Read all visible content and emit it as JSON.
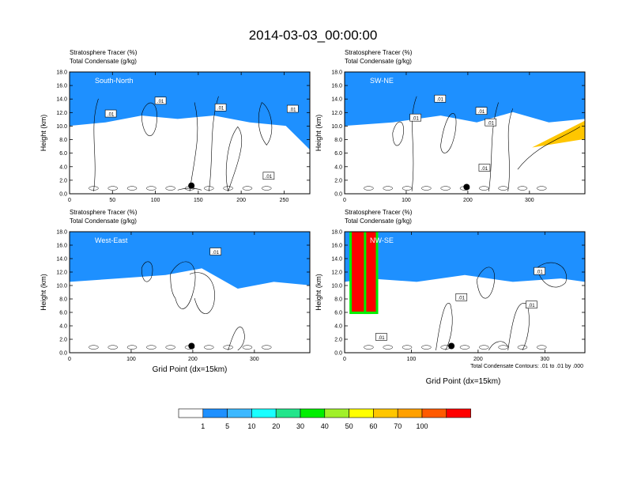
{
  "title": "2014-03-03_00:00:00",
  "colors": {
    "levels": [
      "#ffffff",
      "#1e90ff",
      "#3cb8ff",
      "#19ffff",
      "#22e58b",
      "#00ee00",
      "#a0f02a",
      "#ffff00",
      "#ffc600",
      "#ffa000",
      "#ff5a00",
      "#ff0000"
    ],
    "contour": "#000000"
  },
  "chart_data": [
    {
      "type": "heatmap",
      "panel_label": "South-North",
      "header_line1": "Stratosphere Tracer   (%)",
      "header_line2": "Total Condensate   (g/kg)",
      "ylabel": "Height (km)",
      "xlabel": "",
      "xlim": [
        0,
        280
      ],
      "ylim": [
        0,
        18
      ],
      "xticks": [
        "0",
        "50",
        "100",
        "150",
        "200",
        "250"
      ],
      "yticks": [
        "0.0",
        "2.0",
        "4.0",
        "6.0",
        "8.0",
        "10.0",
        "12.0",
        "14.0",
        "16.0",
        "18.0"
      ],
      "contour_labels": [
        ".01",
        ".01",
        ".01",
        ".01",
        ".01"
      ],
      "contour_label_pos": [
        [
          48,
          11.8
        ],
        [
          106,
          13.7
        ],
        [
          176,
          12.7
        ],
        [
          260,
          12.5
        ],
        [
          232,
          2.6
        ]
      ],
      "marker": [
        142,
        1.2
      ]
    },
    {
      "type": "heatmap",
      "panel_label": "SW-NE",
      "header_line1": "Stratosphere Tracer   (%)",
      "header_line2": "Total Condensate   (g/kg)",
      "ylabel": "Height (km)",
      "xlabel": "",
      "xlim": [
        0,
        390
      ],
      "ylim": [
        0,
        18
      ],
      "xticks": [
        "0",
        "100",
        "200",
        "300"
      ],
      "yticks": [
        "0.0",
        "2.0",
        "4.0",
        "6.0",
        "8.0",
        "10.0",
        "12.0",
        "14.0",
        "16.0",
        "18.0"
      ],
      "contour_labels": [
        ".01",
        ".01",
        ".01",
        ".01",
        ".01"
      ],
      "contour_label_pos": [
        [
          115,
          11.2
        ],
        [
          155,
          14.0
        ],
        [
          222,
          12.2
        ],
        [
          237,
          10.5
        ],
        [
          227,
          3.8
        ]
      ],
      "marker": [
        198,
        1.0
      ]
    },
    {
      "type": "heatmap",
      "panel_label": "West-East",
      "header_line1": "Stratosphere Tracer   (%)",
      "header_line2": "Total Condensate   (g/kg)",
      "ylabel": "Height (km)",
      "xlabel": "Grid Point (dx=15km)",
      "xlim": [
        0,
        390
      ],
      "ylim": [
        0,
        18
      ],
      "xticks": [
        "0",
        "100",
        "200",
        "300"
      ],
      "yticks": [
        "0.0",
        "2.0",
        "4.0",
        "6.0",
        "8.0",
        "10.0",
        "12.0",
        "14.0",
        "16.0",
        "18.0"
      ],
      "contour_labels": [
        ".01"
      ],
      "contour_label_pos": [
        [
          237,
          15.0
        ]
      ],
      "marker": [
        198,
        1.0
      ]
    },
    {
      "type": "heatmap",
      "panel_label": "NW-SE",
      "header_line1": "Stratosphere Tracer   (%)",
      "header_line2": "Total Condensate   (g/kg)",
      "ylabel": "Height (km)",
      "xlabel": "",
      "xlim": [
        0,
        360
      ],
      "ylim": [
        0,
        18
      ],
      "xticks": [
        "0",
        "100",
        "200",
        "300"
      ],
      "yticks": [
        "0.0",
        "2.0",
        "4.0",
        "6.0",
        "8.0",
        "10.0",
        "12.0",
        "14.0",
        "16.0",
        "18.0"
      ],
      "contour_labels": [
        ".01",
        ".01",
        ".01",
        ".01"
      ],
      "contour_label_pos": [
        [
          55,
          2.3
        ],
        [
          175,
          8.2
        ],
        [
          280,
          7.1
        ],
        [
          292,
          12.1
        ]
      ],
      "marker": [
        160,
        1.0
      ]
    }
  ],
  "bottom_xlabel_right": "Grid Point (dx=15km)",
  "footnote": "Total Condensate Contours: .01 to .01 by .000",
  "legend": {
    "labels": [
      "1",
      "5",
      "10",
      "20",
      "30",
      "40",
      "50",
      "60",
      "70",
      "100"
    ]
  }
}
